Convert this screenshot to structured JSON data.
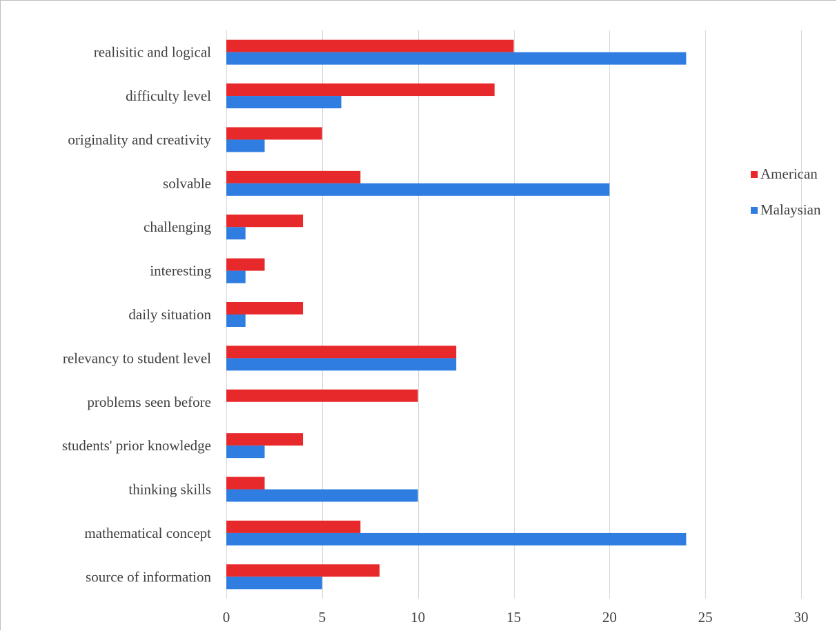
{
  "chart_data": {
    "type": "bar",
    "orientation": "horizontal",
    "categories": [
      "realisitic and logical",
      "difficulty level",
      "originality and creativity",
      "solvable",
      "challenging",
      "interesting",
      "daily situation",
      "relevancy to student level",
      "problems seen before",
      "students' prior knowledge",
      "thinking skills",
      "mathematical concept",
      "source of information"
    ],
    "series": [
      {
        "name": "American",
        "color": "#e8292b",
        "values": [
          15,
          14,
          5,
          7,
          4,
          2,
          4,
          12,
          10,
          4,
          2,
          7,
          8
        ]
      },
      {
        "name": "Malaysian",
        "color": "#2f7de1",
        "values": [
          24,
          6,
          2,
          20,
          1,
          1,
          1,
          12,
          0,
          2,
          10,
          24,
          5
        ]
      }
    ],
    "xlim": [
      0,
      30
    ],
    "xticks": [
      0,
      5,
      10,
      15,
      20,
      25,
      30
    ],
    "title": "",
    "xlabel": "",
    "ylabel": "",
    "grid": "vertical",
    "legend_position": "right"
  }
}
